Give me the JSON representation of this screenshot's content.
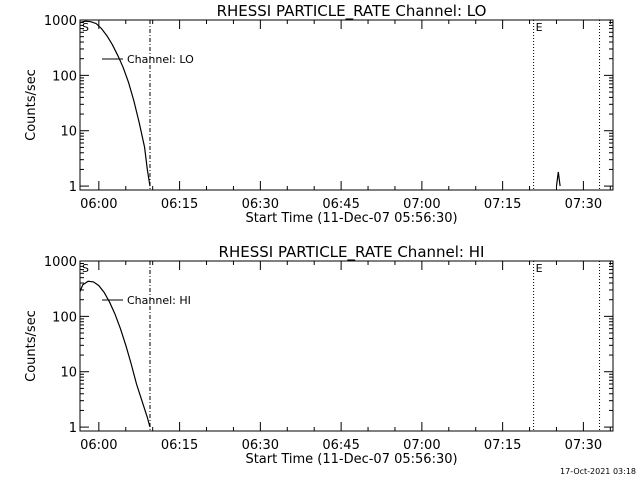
{
  "footer": {
    "timestamp": "17-Oct-2021 03:18"
  },
  "chart_data": [
    {
      "type": "line",
      "title": "RHESSI PARTICLE_RATE Channel: LO",
      "xlabel": "Start Time (11-Dec-07 05:56:30)",
      "ylabel": "Counts/sec",
      "y_scale": "log",
      "ylim": [
        0.85,
        1000
      ],
      "xlim": [
        "05:56:30",
        "07:35:30"
      ],
      "x_ticks": [
        "06:00",
        "06:15",
        "06:30",
        "06:45",
        "07:00",
        "07:15",
        "07:30"
      ],
      "y_ticks": [
        "1",
        "10",
        "100",
        "1000"
      ],
      "legend": {
        "label": "Channel: LO",
        "position": "upper-left"
      },
      "start_marker": {
        "label": "S",
        "time": "05:56:30"
      },
      "end_marker": {
        "label": "E",
        "time": "07:20:45"
      },
      "vertical_lines": [
        {
          "time": "06:09:30",
          "style": "dash-dot"
        },
        {
          "time": "07:20:45",
          "style": "dotted"
        },
        {
          "time": "07:33:00",
          "style": "dotted"
        }
      ],
      "series": [
        {
          "name": "Channel: LO",
          "x": [
            "05:56:30",
            "05:57:30",
            "05:58:30",
            "05:59:30",
            "06:00:30",
            "06:01:30",
            "06:02:30",
            "06:03:30",
            "06:04:30",
            "06:05:30",
            "06:06:30",
            "06:07:30",
            "06:08:30",
            "06:09:00",
            "06:09:30"
          ],
          "y": [
            900,
            950,
            930,
            860,
            700,
            520,
            360,
            230,
            140,
            75,
            35,
            14,
            5,
            2,
            1
          ]
        },
        {
          "name": "Channel: LO",
          "x": [
            "07:25:00",
            "07:25:20",
            "07:25:40"
          ],
          "y": [
            1,
            1.8,
            1
          ]
        }
      ]
    },
    {
      "type": "line",
      "title": "RHESSI PARTICLE_RATE Channel: HI",
      "xlabel": "Start Time (11-Dec-07 05:56:30)",
      "ylabel": "Counts/sec",
      "y_scale": "log",
      "ylim": [
        0.85,
        1000
      ],
      "xlim": [
        "05:56:30",
        "07:35:30"
      ],
      "x_ticks": [
        "06:00",
        "06:15",
        "06:30",
        "06:45",
        "07:00",
        "07:15",
        "07:30"
      ],
      "y_ticks": [
        "1",
        "10",
        "100",
        "1000"
      ],
      "legend": {
        "label": "Channel: HI",
        "position": "upper-left"
      },
      "start_marker": {
        "label": "S",
        "time": "05:56:30"
      },
      "end_marker": {
        "label": "E",
        "time": "07:20:45"
      },
      "vertical_lines": [
        {
          "time": "06:09:30",
          "style": "dash-dot"
        },
        {
          "time": "07:20:45",
          "style": "dotted"
        },
        {
          "time": "07:33:00",
          "style": "dotted"
        }
      ],
      "series": [
        {
          "name": "Channel: HI",
          "x": [
            "05:56:30",
            "05:57:00",
            "05:58:00",
            "05:59:00",
            "06:00:00",
            "06:01:00",
            "06:02:00",
            "06:03:00",
            "06:04:00",
            "06:05:00",
            "06:06:00",
            "06:07:00",
            "06:08:00",
            "06:09:00",
            "06:09:30"
          ],
          "y": [
            280,
            370,
            430,
            420,
            360,
            270,
            180,
            110,
            60,
            30,
            14,
            6,
            3,
            1.5,
            1
          ]
        }
      ]
    }
  ]
}
